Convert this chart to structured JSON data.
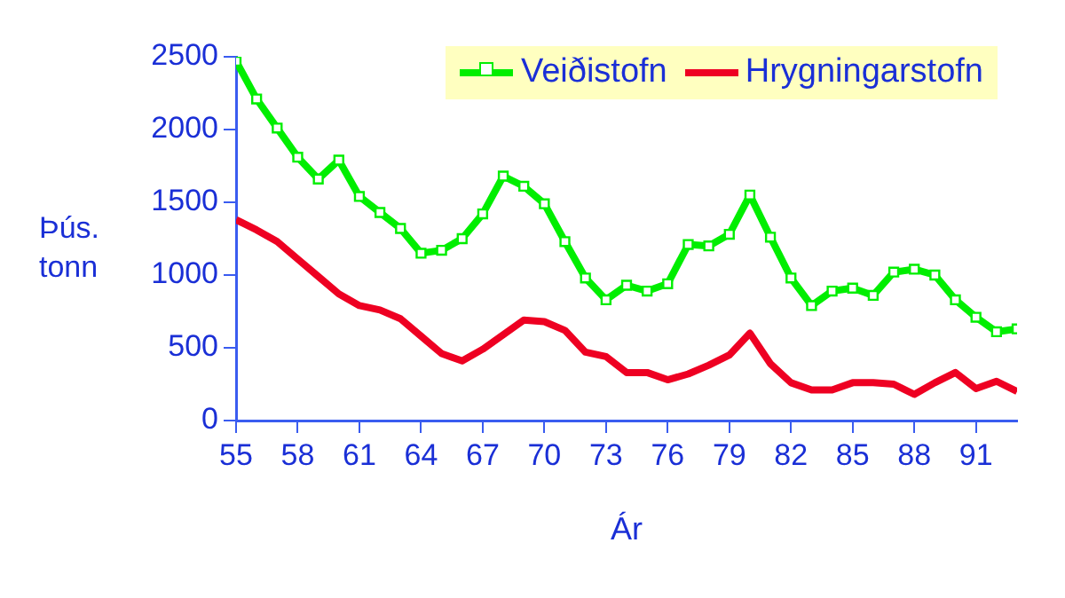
{
  "chart_data": {
    "type": "line",
    "xlabel": "Ár",
    "ylabel": "Þús.\ntonn",
    "x": [
      55,
      56,
      57,
      58,
      59,
      60,
      61,
      62,
      63,
      64,
      65,
      66,
      67,
      68,
      69,
      70,
      71,
      72,
      73,
      74,
      75,
      76,
      77,
      78,
      79,
      80,
      81,
      82,
      83,
      84,
      85,
      86,
      87,
      88,
      89,
      90,
      91,
      92,
      93
    ],
    "xlim": [
      55,
      93
    ],
    "xticks": [
      55,
      58,
      61,
      64,
      67,
      70,
      73,
      76,
      79,
      82,
      85,
      88,
      91
    ],
    "ylim": [
      0,
      2500
    ],
    "yticks": [
      0,
      500,
      1000,
      1500,
      2000,
      2500
    ],
    "grid": false,
    "legend": "top right",
    "series": [
      {
        "name": "Veiðistofn",
        "color": "#00ee00",
        "marker": "square",
        "values": [
          2470,
          2210,
          2010,
          1810,
          1660,
          1790,
          1540,
          1430,
          1320,
          1150,
          1170,
          1250,
          1420,
          1680,
          1610,
          1490,
          1230,
          980,
          830,
          930,
          890,
          940,
          1210,
          1200,
          1280,
          1550,
          1260,
          980,
          790,
          890,
          910,
          860,
          1020,
          1040,
          1000,
          830,
          710,
          610,
          630
        ]
      },
      {
        "name": "Hrygningarstofn",
        "color": "#ee0022",
        "marker": "none",
        "values": [
          1380,
          1310,
          1230,
          1110,
          990,
          870,
          790,
          760,
          700,
          580,
          460,
          410,
          490,
          590,
          690,
          680,
          620,
          470,
          440,
          330,
          330,
          280,
          320,
          380,
          450,
          600,
          390,
          260,
          210,
          210,
          260,
          260,
          250,
          180,
          260,
          330,
          220,
          270,
          200
        ]
      }
    ]
  }
}
